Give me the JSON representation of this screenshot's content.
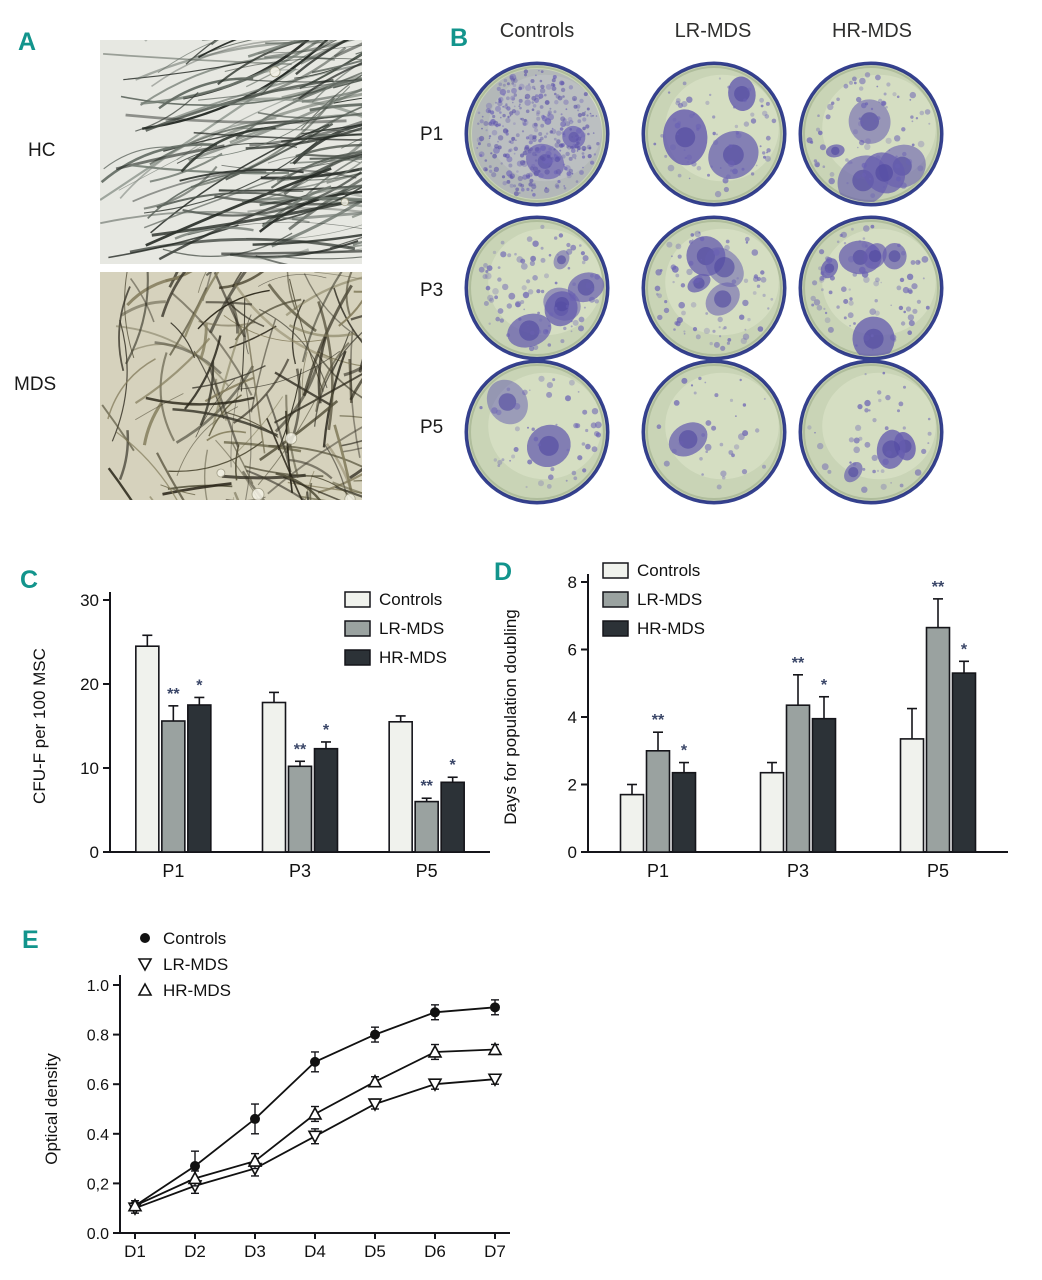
{
  "figure": {
    "panel_letter_color": "#12948c"
  },
  "panels": {
    "a": {
      "label": "A",
      "row_labels": [
        "HC",
        "MDS"
      ]
    },
    "b": {
      "label": "B",
      "columns": [
        "Controls",
        "LR-MDS",
        "HR-MDS"
      ],
      "rows": [
        "P1",
        "P3",
        "P5"
      ],
      "stain_density": [
        [
          0.92,
          0.45,
          0.5
        ],
        [
          0.6,
          0.5,
          0.55
        ],
        [
          0.32,
          0.22,
          0.28
        ]
      ],
      "big_blobs": [
        [
          2,
          3,
          5
        ],
        [
          5,
          4,
          5
        ],
        [
          2,
          1,
          3
        ]
      ]
    },
    "c": {
      "label": "C"
    },
    "d": {
      "label": "D"
    },
    "e": {
      "label": "E"
    }
  },
  "chart_data": [
    {
      "id": "cfu",
      "type": "bar",
      "title": "",
      "xlabel": "",
      "ylabel": "CFU-F per 100 MSC",
      "ylim": [
        0,
        30
      ],
      "yticks": [
        0,
        10,
        20,
        30
      ],
      "categories": [
        "P1",
        "P3",
        "P5"
      ],
      "legend_position": "top-right",
      "series": [
        {
          "name": "Controls",
          "values": [
            24.5,
            17.8,
            15.5
          ],
          "errors": [
            1.3,
            1.2,
            0.7
          ],
          "sig": [
            "",
            "",
            ""
          ]
        },
        {
          "name": "LR-MDS",
          "values": [
            15.6,
            10.2,
            6.0
          ],
          "errors": [
            1.8,
            0.6,
            0.4
          ],
          "sig": [
            "**",
            "**",
            "**"
          ]
        },
        {
          "name": "HR-MDS",
          "values": [
            17.5,
            12.3,
            8.3
          ],
          "errors": [
            0.9,
            0.8,
            0.6
          ],
          "sig": [
            "*",
            "*",
            "*"
          ]
        }
      ]
    },
    {
      "id": "doubling",
      "type": "bar",
      "title": "",
      "xlabel": "",
      "ylabel": "Days for population doubling",
      "ylim": [
        0,
        8
      ],
      "yticks": [
        0,
        2,
        4,
        6,
        8
      ],
      "categories": [
        "P1",
        "P3",
        "P5"
      ],
      "legend_position": "top-left",
      "series": [
        {
          "name": "Controls",
          "values": [
            1.7,
            2.35,
            3.35
          ],
          "errors": [
            0.3,
            0.3,
            0.9
          ],
          "sig": [
            "",
            "",
            ""
          ]
        },
        {
          "name": "LR-MDS",
          "values": [
            3.0,
            4.35,
            6.65
          ],
          "errors": [
            0.55,
            0.9,
            0.85
          ],
          "sig": [
            "**",
            "**",
            "**"
          ]
        },
        {
          "name": "HR-MDS",
          "values": [
            2.35,
            3.95,
            5.3
          ],
          "errors": [
            0.3,
            0.65,
            0.35
          ],
          "sig": [
            "*",
            "*",
            "*"
          ]
        }
      ]
    },
    {
      "id": "growth",
      "type": "line",
      "title": "",
      "xlabel": "",
      "ylabel": "Optical density",
      "ylim": [
        0,
        1.0
      ],
      "yticks": [
        "0.0",
        "0,2",
        "0.4",
        "0.6",
        "0.8",
        "1.0"
      ],
      "ytick_values": [
        0,
        0.2,
        0.4,
        0.6,
        0.8,
        1.0
      ],
      "x": [
        "D1",
        "D2",
        "D3",
        "D4",
        "D5",
        "D6",
        "D7"
      ],
      "legend_position": "top-left",
      "series": [
        {
          "name": "Controls",
          "marker": "circle-filled",
          "values": [
            0.11,
            0.27,
            0.46,
            0.69,
            0.8,
            0.89,
            0.91
          ],
          "errors": [
            0.02,
            0.06,
            0.06,
            0.04,
            0.03,
            0.03,
            0.03
          ]
        },
        {
          "name": "LR-MDS",
          "marker": "triangle-down-open",
          "values": [
            0.1,
            0.19,
            0.26,
            0.39,
            0.52,
            0.6,
            0.62
          ],
          "errors": [
            0.02,
            0.03,
            0.03,
            0.03,
            0.02,
            0.02,
            0.02
          ]
        },
        {
          "name": "HR-MDS",
          "marker": "triangle-up-open",
          "values": [
            0.11,
            0.22,
            0.29,
            0.48,
            0.61,
            0.73,
            0.74
          ],
          "errors": [
            0.02,
            0.03,
            0.03,
            0.03,
            0.02,
            0.03,
            0.02
          ]
        }
      ]
    }
  ],
  "colors": {
    "controls_fill": "#f0f2ed",
    "lr_fill": "#9aa2a0",
    "hr_fill": "#2c3237",
    "bar_stroke": "#15151a",
    "sig_color": "#3a4668",
    "dish_bg": "#c9d4b6",
    "dish_rim": "#35418f",
    "stain": "#655cae"
  }
}
